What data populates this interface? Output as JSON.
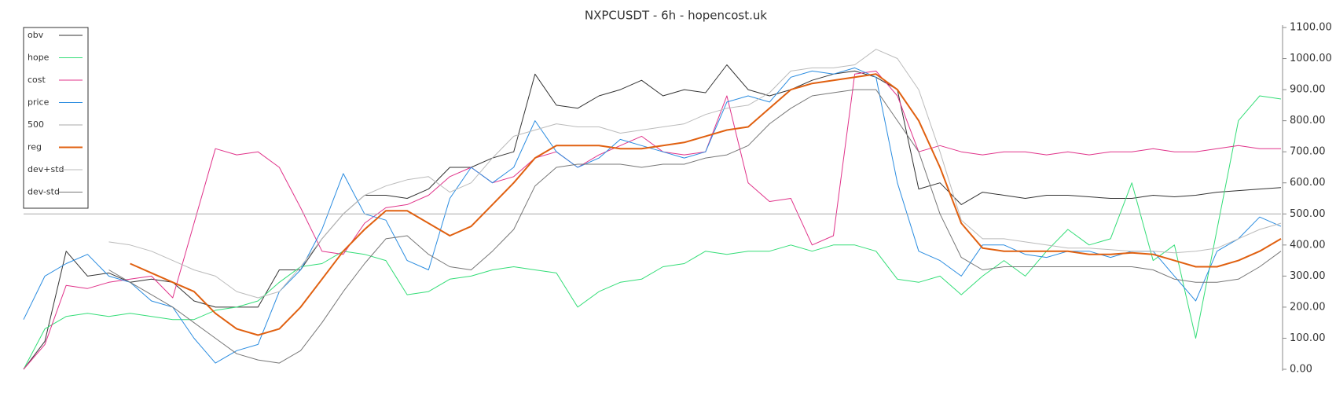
{
  "chart_data": {
    "type": "line",
    "title": "NXPCUSDT - 6h - hopencost.uk",
    "ylim": [
      0,
      1100
    ],
    "yticks": [
      {
        "value": 0,
        "label": "0.00"
      },
      {
        "value": 100,
        "label": "100.00"
      },
      {
        "value": 200,
        "label": "200.00"
      },
      {
        "value": 300,
        "label": "300.00"
      },
      {
        "value": 400,
        "label": "400.00"
      },
      {
        "value": 500,
        "label": "500.00"
      },
      {
        "value": 600,
        "label": "600.00"
      },
      {
        "value": 700,
        "label": "700.00"
      },
      {
        "value": 800,
        "label": "800.00"
      },
      {
        "value": 900,
        "label": "900.00"
      },
      {
        "value": 1000,
        "label": "1000.00"
      },
      {
        "value": 1100,
        "label": "1100.00"
      }
    ],
    "y_axis_side": "right",
    "legend": "upper left",
    "series": [
      {
        "name": "obv",
        "color": "#333333",
        "line_width": 1,
        "values": [
          0,
          90,
          380,
          300,
          310,
          280,
          290,
          280,
          220,
          200,
          200,
          200,
          320,
          320,
          420,
          500,
          560,
          560,
          550,
          580,
          650,
          650,
          680,
          700,
          950,
          850,
          840,
          880,
          900,
          930,
          880,
          900,
          890,
          980,
          900,
          880,
          900,
          930,
          950,
          960,
          940,
          900,
          580,
          600,
          530,
          570,
          560,
          550,
          560,
          560,
          555,
          550,
          550,
          560,
          555,
          560,
          570,
          575,
          580,
          585
        ]
      },
      {
        "name": "hope",
        "color": "#33dd77",
        "line_width": 1,
        "values": [
          0,
          130,
          170,
          180,
          170,
          180,
          170,
          160,
          160,
          190,
          200,
          220,
          280,
          330,
          340,
          380,
          370,
          350,
          240,
          250,
          290,
          300,
          320,
          330,
          320,
          310,
          200,
          250,
          280,
          290,
          330,
          340,
          380,
          370,
          380,
          380,
          400,
          380,
          400,
          400,
          380,
          290,
          280,
          300,
          240,
          300,
          350,
          300,
          380,
          450,
          400,
          420,
          600,
          350,
          400,
          100,
          450,
          800,
          880,
          870
        ]
      },
      {
        "name": "cost",
        "color": "#e0338a",
        "line_width": 1,
        "values": [
          0,
          80,
          270,
          260,
          280,
          290,
          300,
          230,
          470,
          710,
          690,
          700,
          650,
          520,
          380,
          370,
          470,
          520,
          530,
          560,
          620,
          650,
          600,
          620,
          680,
          700,
          650,
          690,
          720,
          750,
          700,
          690,
          700,
          880,
          600,
          540,
          550,
          400,
          430,
          950,
          960,
          880,
          700,
          720,
          700,
          690,
          700,
          700,
          690,
          700,
          690,
          700,
          700,
          710,
          700,
          700,
          710,
          720,
          710,
          710
        ]
      },
      {
        "name": "price",
        "color": "#2a8ce0",
        "line_width": 1,
        "values": [
          160,
          300,
          340,
          370,
          300,
          280,
          220,
          200,
          100,
          20,
          60,
          80,
          250,
          320,
          450,
          630,
          500,
          480,
          350,
          320,
          550,
          650,
          600,
          650,
          800,
          700,
          650,
          680,
          740,
          720,
          700,
          680,
          700,
          860,
          880,
          860,
          940,
          960,
          950,
          970,
          940,
          600,
          380,
          350,
          300,
          400,
          400,
          370,
          360,
          380,
          380,
          360,
          380,
          380,
          300,
          220,
          380,
          420,
          490,
          460
        ]
      },
      {
        "name": "500",
        "color": "#aaaaaa",
        "line_width": 1,
        "values": [
          500,
          500,
          500,
          500,
          500,
          500,
          500,
          500,
          500,
          500,
          500,
          500,
          500,
          500,
          500,
          500,
          500,
          500,
          500,
          500,
          500,
          500,
          500,
          500,
          500,
          500,
          500,
          500,
          500,
          500,
          500,
          500,
          500,
          500,
          500,
          500,
          500,
          500,
          500,
          500,
          500,
          500,
          500,
          500,
          500,
          500,
          500,
          500,
          500,
          500,
          500,
          500,
          500,
          500,
          500,
          500,
          500,
          500,
          500,
          500
        ]
      },
      {
        "name": "reg",
        "color": "#e06010",
        "line_width": 2,
        "values": [
          null,
          null,
          null,
          null,
          null,
          340,
          310,
          280,
          250,
          180,
          130,
          110,
          130,
          200,
          290,
          380,
          450,
          510,
          510,
          470,
          430,
          460,
          530,
          600,
          680,
          720,
          720,
          720,
          710,
          710,
          720,
          730,
          750,
          770,
          780,
          840,
          900,
          920,
          930,
          940,
          950,
          900,
          800,
          650,
          470,
          390,
          380,
          380,
          380,
          380,
          370,
          370,
          375,
          370,
          350,
          330,
          330,
          350,
          380,
          420
        ]
      },
      {
        "name": "dev+std",
        "color": "#bbbbbb",
        "line_width": 1,
        "values": [
          null,
          null,
          null,
          null,
          410,
          400,
          380,
          350,
          320,
          300,
          250,
          230,
          250,
          330,
          420,
          500,
          560,
          590,
          610,
          620,
          570,
          600,
          680,
          750,
          770,
          790,
          780,
          780,
          760,
          770,
          780,
          790,
          820,
          840,
          850,
          890,
          960,
          970,
          970,
          980,
          1030,
          1000,
          900,
          700,
          480,
          420,
          420,
          410,
          400,
          390,
          390,
          385,
          380,
          380,
          375,
          380,
          390,
          420,
          450,
          470
        ]
      },
      {
        "name": "dev-std",
        "color": "#777777",
        "line_width": 1,
        "values": [
          null,
          null,
          null,
          null,
          320,
          280,
          240,
          200,
          150,
          100,
          50,
          30,
          20,
          60,
          150,
          250,
          340,
          420,
          430,
          370,
          330,
          320,
          380,
          450,
          590,
          650,
          660,
          660,
          660,
          650,
          660,
          660,
          680,
          690,
          720,
          790,
          840,
          880,
          890,
          900,
          900,
          800,
          700,
          500,
          360,
          320,
          330,
          330,
          330,
          330,
          330,
          330,
          330,
          320,
          290,
          280,
          280,
          290,
          330,
          380
        ]
      }
    ]
  }
}
